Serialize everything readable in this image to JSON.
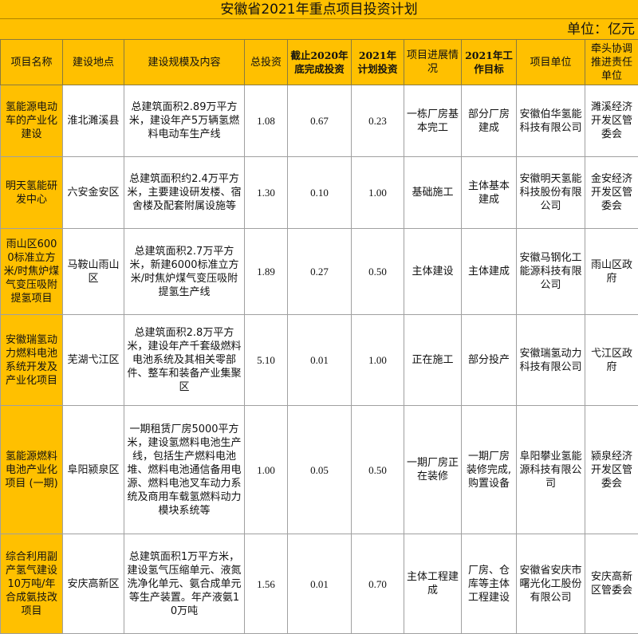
{
  "title": "安徽省2021年重点项目投资计划",
  "unit": "单位：亿元",
  "headers": [
    "项目名称",
    "建设地点",
    "建设规模及内容",
    "总投资",
    "截止2020年底完成投资",
    "2021年计划投资",
    "项目进展情况",
    "2021年工作目标",
    "项目单位",
    "牵头协调推进责任单位"
  ],
  "rows": [
    {
      "name": "氢能源电动车的产业化建设",
      "location": "淮北濉溪县",
      "content": "总建筑面积2.89万平方米，建设年产5万辆氢燃料电动车生产线",
      "total": "1.08",
      "done2020": "0.67",
      "plan2021": "0.23",
      "progress": "一栋厂房基本完工",
      "goal2021": "部分厂房建成",
      "company": "安徽伯华氢能科技有限公司",
      "lead": "濉溪经济开发区管委会"
    },
    {
      "name": "明天氢能研发中心",
      "location": "六安金安区",
      "content": "总建筑面积约2.4万平方米，主要建设研发楼、宿舍楼及配套附属设施等",
      "total": "1.30",
      "done2020": "0.10",
      "plan2021": "1.00",
      "progress": "基础施工",
      "goal2021": "主体基本建成",
      "company": "安徽明天氢能科技股份有限公司",
      "lead": "金安经济开发区管委会"
    },
    {
      "name": "雨山区6000标准立方米/时焦炉煤气变压吸附提氢项目",
      "location": "马鞍山雨山区",
      "content": "总建筑面积2.7万平方米，新建6000标准立方米/时焦炉煤气变压吸附提氢生产线",
      "total": "1.89",
      "done2020": "0.27",
      "plan2021": "0.50",
      "progress": "主体建设",
      "goal2021": "主体建成",
      "company": "安徽马钢化工能源科技有限公司",
      "lead": "雨山区政府"
    },
    {
      "name": "安徽瑞氢动力燃料电池系统开发及产业化项目",
      "location": "芜湖弋江区",
      "content": "总建筑面积2.8万平方米，建设年产千套级燃料电池系统及其相关零部件、整车和装备产业集聚区",
      "total": "5.10",
      "done2020": "0.01",
      "plan2021": "1.00",
      "progress": "正在施工",
      "goal2021": "部分投产",
      "company": "安徽瑞氢动力科技有限公司",
      "lead": "弋江区政府"
    },
    {
      "name": "氢能源燃料电池产业化项目 (一期)",
      "location": "阜阳颍泉区",
      "content": "一期租赁厂房5000平方米，建设氢燃料电池生产线，包括生产燃料电池堆、燃料电池通信备用电源、燃料电池叉车动力系统及商用车载氢燃料动力模块系统等",
      "total": "1.00",
      "done2020": "0.05",
      "plan2021": "0.50",
      "progress": "一期厂房正在装修",
      "goal2021": "一期厂房装修完成,购置设备",
      "company": "阜阳攀业氢能源科技有限公司",
      "lead": "颍泉经济开发区管委会"
    },
    {
      "name": "综合利用副产氢气建设10万吨/年合成氨技改项目",
      "location": "安庆高新区",
      "content": "总建筑面积1万平方米，建设氢气压缩单元、液氮洗净化单元、氨合成单元等生产装置。年产液氨10万吨",
      "total": "1.56",
      "done2020": "0.01",
      "plan2021": "0.70",
      "progress": "主体工程建成",
      "goal2021": "厂房、仓库等主体工程建设",
      "company": "安徽省安庆市曙光化工股份有限公司",
      "lead": "安庆高新区管委会"
    }
  ],
  "colors": {
    "header_bg": "#FFC000",
    "border": "#a0a0a0"
  }
}
